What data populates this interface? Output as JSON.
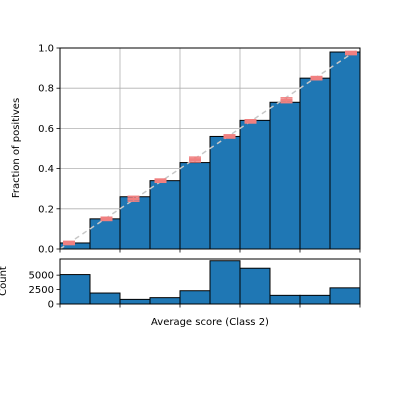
{
  "chart_data": [
    {
      "type": "bar",
      "panel": "calibration",
      "xlim": [
        0,
        1
      ],
      "ylim": [
        0,
        1
      ],
      "ylabel": "Fraction of positives",
      "yticks": [
        "0.0",
        "0.2",
        "0.4",
        "0.6",
        "0.8",
        "1.0"
      ],
      "ytick_values": [
        0,
        0.2,
        0.4,
        0.6,
        0.8,
        1.0
      ],
      "grid": true,
      "bar_color": "#1f77b4",
      "bins": [
        {
          "x0": 0.0,
          "x1": 0.1,
          "value": 0.03
        },
        {
          "x0": 0.1,
          "x1": 0.2,
          "value": 0.15
        },
        {
          "x0": 0.2,
          "x1": 0.3,
          "value": 0.26
        },
        {
          "x0": 0.3,
          "x1": 0.4,
          "value": 0.34
        },
        {
          "x0": 0.4,
          "x1": 0.5,
          "value": 0.43
        },
        {
          "x0": 0.5,
          "x1": 0.6,
          "value": 0.56
        },
        {
          "x0": 0.6,
          "x1": 0.7,
          "value": 0.64
        },
        {
          "x0": 0.7,
          "x1": 0.8,
          "value": 0.73
        },
        {
          "x0": 0.8,
          "x1": 0.9,
          "value": 0.85
        },
        {
          "x0": 0.9,
          "x1": 1.0,
          "value": 0.98
        }
      ],
      "error_markers": {
        "color": "#f08080",
        "points": [
          {
            "x": 0.03,
            "y": 0.03,
            "err": 0.008
          },
          {
            "x": 0.155,
            "y": 0.15,
            "err": 0.008
          },
          {
            "x": 0.245,
            "y": 0.25,
            "err": 0.012
          },
          {
            "x": 0.335,
            "y": 0.34,
            "err": 0.008
          },
          {
            "x": 0.45,
            "y": 0.445,
            "err": 0.012
          },
          {
            "x": 0.565,
            "y": 0.56,
            "err": 0.008
          },
          {
            "x": 0.635,
            "y": 0.635,
            "err": 0.008
          },
          {
            "x": 0.755,
            "y": 0.74,
            "err": 0.012
          },
          {
            "x": 0.855,
            "y": 0.85,
            "err": 0.008
          },
          {
            "x": 0.97,
            "y": 0.975,
            "err": 0.008
          }
        ]
      },
      "reference_line": {
        "from": [
          0,
          0
        ],
        "to": [
          1,
          1
        ],
        "color": "#c8c8c8",
        "style": "dashed"
      }
    },
    {
      "type": "bar",
      "panel": "histogram",
      "xlim": [
        0,
        1
      ],
      "ylim": [
        0,
        7800
      ],
      "xlabel": "Average score (Class 2)",
      "ylabel": "Count",
      "yticks": [
        "0",
        "2500",
        "5000"
      ],
      "ytick_values": [
        0,
        2500,
        5000
      ],
      "grid": false,
      "bar_color": "#1f77b4",
      "bins": [
        {
          "x0": 0.0,
          "x1": 0.1,
          "value": 5100
        },
        {
          "x0": 0.1,
          "x1": 0.2,
          "value": 1900
        },
        {
          "x0": 0.2,
          "x1": 0.3,
          "value": 800
        },
        {
          "x0": 0.3,
          "x1": 0.4,
          "value": 1100
        },
        {
          "x0": 0.4,
          "x1": 0.5,
          "value": 2300
        },
        {
          "x0": 0.5,
          "x1": 0.6,
          "value": 7500
        },
        {
          "x0": 0.6,
          "x1": 0.7,
          "value": 6200
        },
        {
          "x0": 0.7,
          "x1": 0.8,
          "value": 1500
        },
        {
          "x0": 0.8,
          "x1": 0.9,
          "value": 1500
        },
        {
          "x0": 0.9,
          "x1": 1.0,
          "value": 2800
        }
      ]
    }
  ]
}
